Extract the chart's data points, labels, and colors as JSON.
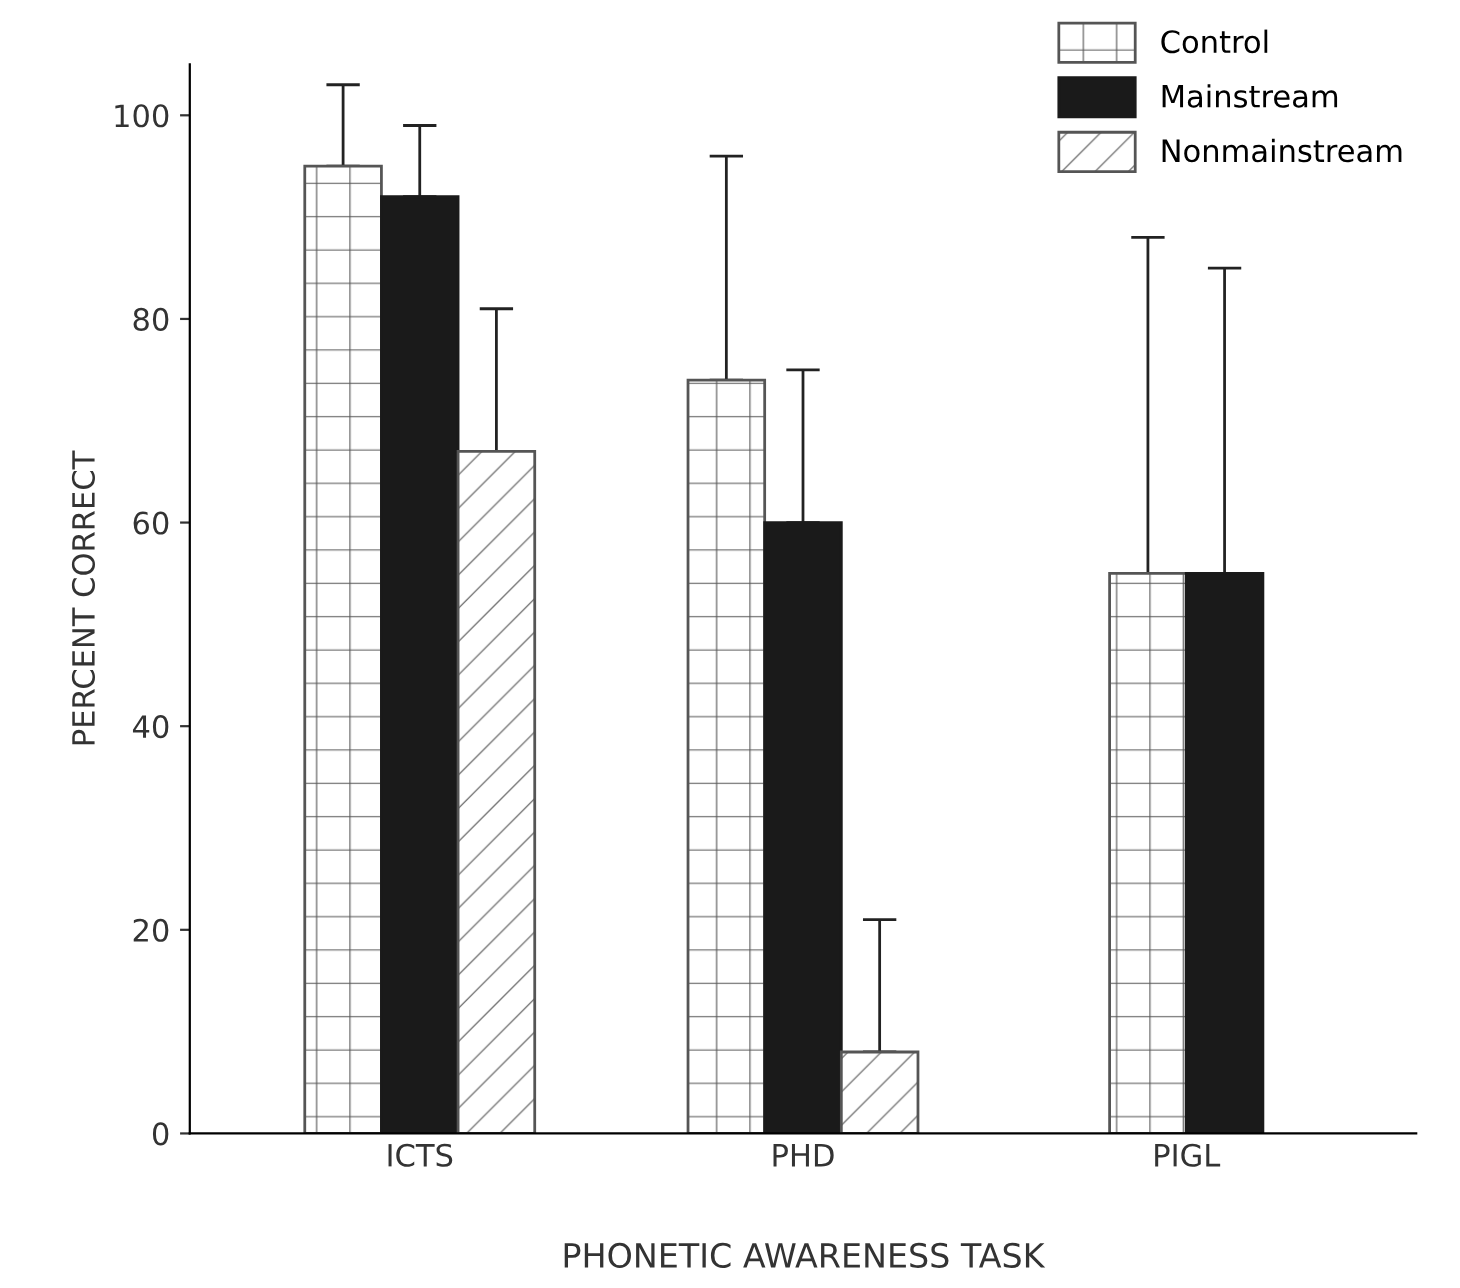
{
  "chart_data": {
    "type": "bar",
    "xlabel": "PHONETIC AWARENESS TASK",
    "ylabel": "PERCENT CORRECT",
    "categories": [
      "ICTS",
      "PHD",
      "PIGL"
    ],
    "series": [
      {
        "name": "Control",
        "color": "#555555",
        "values": [
          95,
          74,
          55
        ],
        "errors": [
          [
            95,
            103
          ],
          [
            74,
            96
          ],
          [
            55,
            88
          ]
        ]
      },
      {
        "name": "Mainstream",
        "color": "#1a1a1a",
        "values": [
          92,
          60,
          55
        ],
        "errors": [
          [
            92,
            99
          ],
          [
            60,
            75
          ],
          [
            55,
            85
          ]
        ]
      },
      {
        "name": "Nonmainstream",
        "color": "#555555",
        "values": [
          67,
          8,
          null
        ],
        "errors": [
          [
            67,
            81
          ],
          [
            8,
            21
          ],
          null
        ]
      }
    ],
    "ylim": [
      0,
      105
    ],
    "yticks": [
      0,
      20,
      40,
      60,
      80,
      100
    ],
    "grid": false,
    "legend": "top right"
  }
}
